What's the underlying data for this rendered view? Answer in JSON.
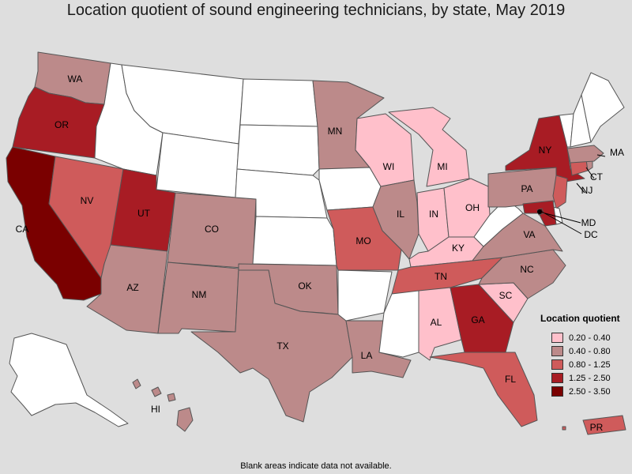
{
  "title": "Location quotient of sound engineering technicians, by state, May 2019",
  "footnote": "Blank areas indicate data not available.",
  "legend": {
    "title": "Location quotient",
    "items": [
      {
        "label": "0.20 - 0.40",
        "color": "#ffc0cb"
      },
      {
        "label": "0.40 - 0.80",
        "color": "#bc8a8a"
      },
      {
        "label": "0.80 - 1.25",
        "color": "#cf5b5b"
      },
      {
        "label": "1.25 - 2.50",
        "color": "#a81c24"
      },
      {
        "label": "2.50 - 3.50",
        "color": "#7a0000"
      }
    ]
  },
  "colors": {
    "no_data": "#ffffff",
    "background": "#dedede",
    "border": "#555555"
  },
  "states": {
    "WA": {
      "label": "WA",
      "class": 1
    },
    "OR": {
      "label": "OR",
      "class": 3
    },
    "CA": {
      "label": "CA",
      "class": 4
    },
    "NV": {
      "label": "NV",
      "class": 2
    },
    "ID": {
      "label": "",
      "class": null
    },
    "MT": {
      "label": "",
      "class": null
    },
    "WY": {
      "label": "",
      "class": null
    },
    "UT": {
      "label": "UT",
      "class": 3
    },
    "AZ": {
      "label": "AZ",
      "class": 1
    },
    "CO": {
      "label": "CO",
      "class": 1
    },
    "NM": {
      "label": "NM",
      "class": 1
    },
    "ND": {
      "label": "",
      "class": null
    },
    "SD": {
      "label": "",
      "class": null
    },
    "NE": {
      "label": "",
      "class": null
    },
    "KS": {
      "label": "",
      "class": null
    },
    "OK": {
      "label": "OK",
      "class": 1
    },
    "TX": {
      "label": "TX",
      "class": 1
    },
    "MN": {
      "label": "MN",
      "class": 1
    },
    "IA": {
      "label": "",
      "class": null
    },
    "MO": {
      "label": "MO",
      "class": 2
    },
    "AR": {
      "label": "",
      "class": null
    },
    "LA": {
      "label": "LA",
      "class": 1
    },
    "WI": {
      "label": "WI",
      "class": 0
    },
    "IL": {
      "label": "IL",
      "class": 1
    },
    "MI": {
      "label": "MI",
      "class": 0
    },
    "IN": {
      "label": "IN",
      "class": 0
    },
    "OH": {
      "label": "OH",
      "class": 0
    },
    "KY": {
      "label": "KY",
      "class": 0
    },
    "TN": {
      "label": "TN",
      "class": 2
    },
    "MS": {
      "label": "",
      "class": null
    },
    "AL": {
      "label": "AL",
      "class": 0
    },
    "GA": {
      "label": "GA",
      "class": 3
    },
    "FL": {
      "label": "FL",
      "class": 2
    },
    "SC": {
      "label": "SC",
      "class": 0
    },
    "NC": {
      "label": "NC",
      "class": 1
    },
    "VA": {
      "label": "VA",
      "class": 1
    },
    "WV": {
      "label": "",
      "class": null
    },
    "PA": {
      "label": "PA",
      "class": 1
    },
    "NY": {
      "label": "NY",
      "class": 3
    },
    "NJ": {
      "label": "NJ",
      "class": 2
    },
    "DE": {
      "label": "",
      "class": null
    },
    "MD": {
      "label": "MD",
      "class": 3
    },
    "DC": {
      "label": "DC",
      "class": 4
    },
    "CT": {
      "label": "CT",
      "class": 2
    },
    "RI": {
      "label": "",
      "class": 1
    },
    "MA": {
      "label": "MA",
      "class": 1
    },
    "VT": {
      "label": "",
      "class": null
    },
    "NH": {
      "label": "",
      "class": null
    },
    "ME": {
      "label": "",
      "class": null
    },
    "AK": {
      "label": "",
      "class": null
    },
    "HI": {
      "label": "HI",
      "class": 1
    },
    "PR": {
      "label": "PR",
      "class": 2
    }
  }
}
